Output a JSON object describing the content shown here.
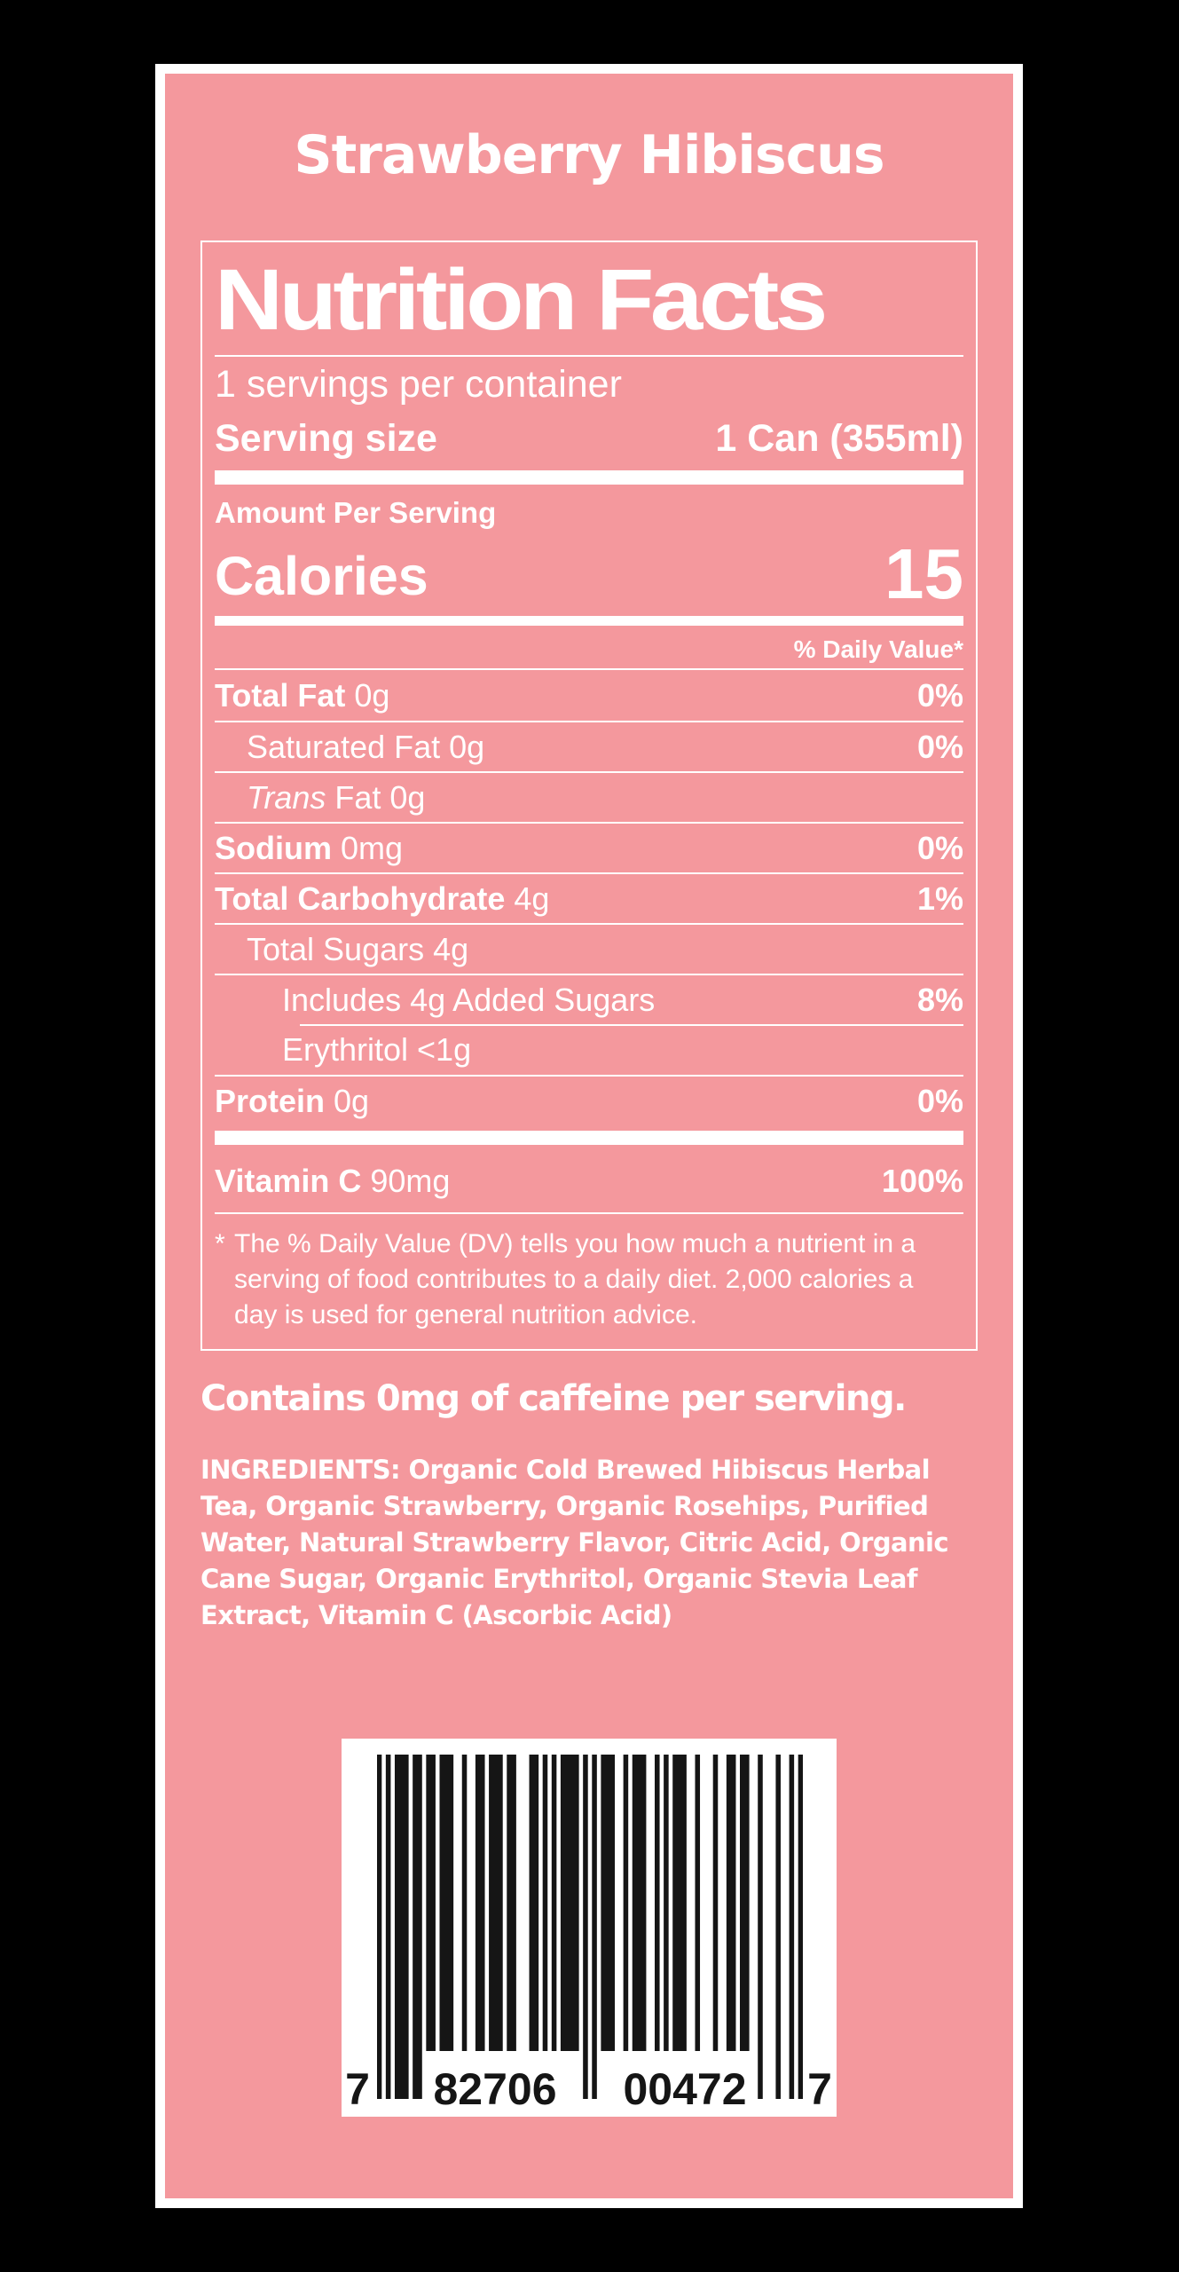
{
  "label": {
    "title": "Strawberry Hibiscus",
    "caffeine_statement": "Contains 0mg of caffeine per serving.",
    "ingredients": "INGREDIENTS: Organic Cold Brewed Hibiscus Herbal Tea, Organic Strawberry, Organic Rosehips, Purified Water, Natural Strawberry Flavor, Citric Acid, Organic Cane Sugar, Organic Erythritol, Organic Stevia Leaf Extract, Vitamin C (Ascorbic Acid)"
  },
  "nutrition": {
    "title": "Nutrition Facts",
    "servings_per_container": "1 servings per container",
    "serving_size_label": "Serving size",
    "serving_size_value": "1 Can (355ml)",
    "amount_per_serving": "Amount Per Serving",
    "calories_label": "Calories",
    "calories_value": "15",
    "daily_value_header": "% Daily Value*",
    "rows": [
      {
        "name": "total-fat",
        "indent": 0,
        "segments": [
          {
            "t": "Total Fat",
            "s": "b"
          },
          {
            "t": " 0g",
            "s": "r"
          }
        ],
        "dv": "0%"
      },
      {
        "name": "saturated-fat",
        "indent": 1,
        "segments": [
          {
            "t": "Saturated Fat 0g",
            "s": "r"
          }
        ],
        "dv": "0%"
      },
      {
        "name": "trans-fat",
        "indent": 1,
        "segments": [
          {
            "t": "Trans",
            "s": "i"
          },
          {
            "t": " Fat 0g",
            "s": "r"
          }
        ],
        "dv": ""
      },
      {
        "name": "sodium",
        "indent": 0,
        "segments": [
          {
            "t": "Sodium",
            "s": "b"
          },
          {
            "t": " 0mg",
            "s": "r"
          }
        ],
        "dv": "0%"
      },
      {
        "name": "total-carbohydrate",
        "indent": 0,
        "segments": [
          {
            "t": "Total Carbohydrate",
            "s": "b"
          },
          {
            "t": " 4g",
            "s": "r"
          }
        ],
        "dv": "1%"
      },
      {
        "name": "total-sugars",
        "indent": 1,
        "segments": [
          {
            "t": "Total Sugars 4g",
            "s": "r"
          }
        ],
        "dv": ""
      },
      {
        "name": "added-sugars",
        "indent": 2,
        "segments": [
          {
            "t": "Includes 4g Added Sugars",
            "s": "r"
          }
        ],
        "dv": "8%"
      },
      {
        "name": "erythritol",
        "indent": 2,
        "rule_indent": true,
        "segments": [
          {
            "t": "Erythritol <1g",
            "s": "r"
          }
        ],
        "dv": ""
      },
      {
        "name": "protein",
        "indent": 0,
        "segments": [
          {
            "t": "Protein",
            "s": "b"
          },
          {
            "t": " 0g",
            "s": "r"
          }
        ],
        "dv": "0%"
      }
    ],
    "vitamin": {
      "name": "vitamin-c",
      "bold": "Vitamin C",
      "rest": " 90mg",
      "dv": "100%"
    },
    "footnote_marker": "*",
    "footnote": "The % Daily Value (DV) tells you how much a nutrient in a serving of food contributes to a daily diet. 2,000 calories a day is used for general nutrition advice."
  },
  "barcode": {
    "upc": "782706004727",
    "display_digits": [
      "7",
      "82706",
      "00472",
      "7"
    ]
  },
  "colors": {
    "background": "#000000",
    "label_pink": "#F4989D",
    "label_border": "#FFFFFF",
    "text": "#FFFFFF",
    "barcode_background": "#FFFFFF",
    "barcode_bars": "#151515"
  }
}
